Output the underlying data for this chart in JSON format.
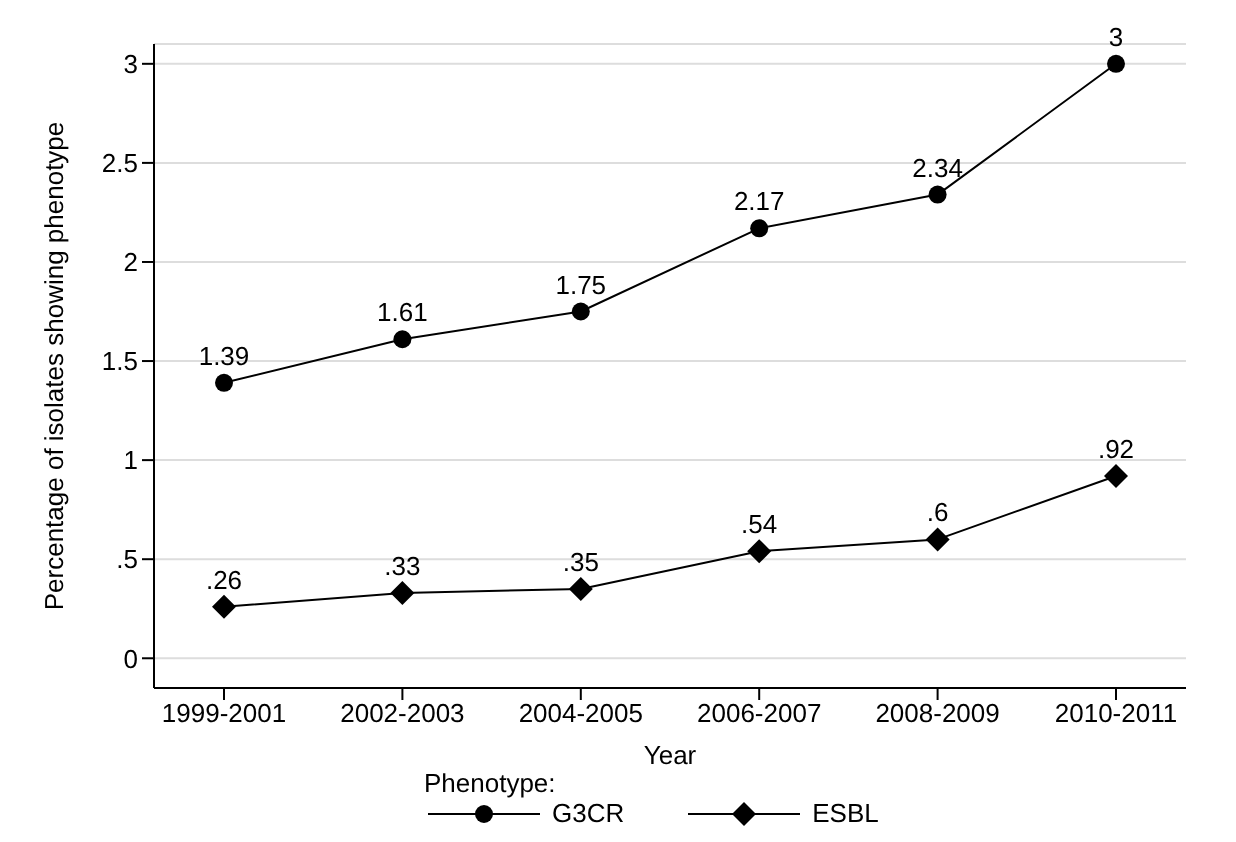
{
  "chart_data": {
    "type": "line",
    "xlabel": "Year",
    "ylabel": "Percentage of isolates showing phenotype",
    "legend_title": "Phenotype:",
    "categories": [
      "1999-2001",
      "2002-2003",
      "2004-2005",
      "2006-2007",
      "2008-2009",
      "2010-2011"
    ],
    "series": [
      {
        "name": "G3CR",
        "color": "#000000",
        "marker": "circle",
        "values": [
          1.39,
          1.61,
          1.75,
          2.17,
          2.34,
          3
        ],
        "value_labels": [
          "1.39",
          "1.61",
          "1.75",
          "2.17",
          "2.34",
          "3"
        ]
      },
      {
        "name": "ESBL",
        "color": "#000000",
        "marker": "diamond",
        "values": [
          0.26,
          0.33,
          0.35,
          0.54,
          0.6,
          0.92
        ],
        "value_labels": [
          ".26",
          ".33",
          ".35",
          ".54",
          ".6",
          ".92"
        ]
      }
    ],
    "ylim": [
      -0.15,
      3.1
    ],
    "yticks": [
      0,
      {
        "value": 0.5,
        "label": ".5"
      },
      1,
      1.5,
      2,
      2.5,
      3
    ],
    "grid": "y",
    "legend": "bottom",
    "line_style": "solid"
  }
}
